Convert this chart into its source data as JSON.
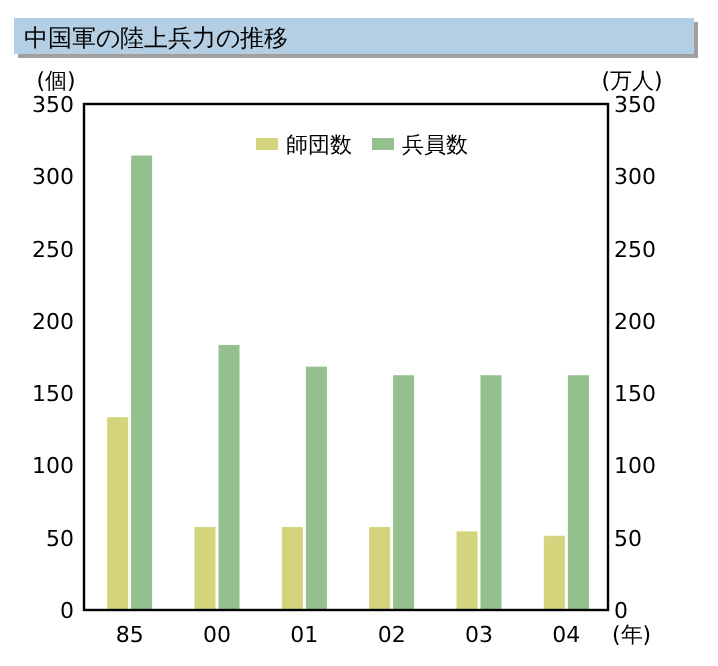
{
  "chart_data": {
    "type": "bar",
    "title": "中国軍の陸上兵力の推移",
    "xlabel": "(年)",
    "ylabel": "(個)",
    "y2label": "(万人)",
    "categories": [
      "85",
      "00",
      "01",
      "02",
      "03",
      "04"
    ],
    "series": [
      {
        "name": "師団数",
        "color": "#d4d47c",
        "values": [
          133,
          57,
          57,
          57,
          54,
          51
        ]
      },
      {
        "name": "兵員数",
        "color": "#93c08e",
        "values": [
          314,
          183,
          168,
          162,
          162,
          162
        ],
        "axis": "y2"
      }
    ],
    "ylim": [
      0,
      350
    ],
    "yticks": [
      0,
      50,
      100,
      150,
      200,
      250,
      300,
      350
    ],
    "y2lim": [
      0,
      350
    ],
    "y2ticks": [
      0,
      50,
      100,
      150,
      200,
      250,
      300,
      350
    ],
    "legend": "top",
    "grid": false
  }
}
